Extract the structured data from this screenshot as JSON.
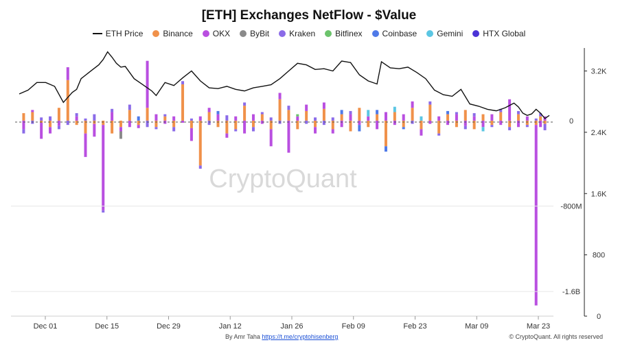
{
  "colors": {
    "eth_price": "#111111",
    "binance": "#f0914a",
    "okx": "#b94fe0",
    "bybit": "#8a8a8a",
    "kraken": "#8b6be8",
    "bitfinex": "#6cc36c",
    "coinbase": "#4f7ae8",
    "gemini": "#5bc6e3",
    "htx": "#4a33d6"
  },
  "watermark": "CryptoQuant",
  "footer": {
    "author": "By Amr Taha",
    "link": "https://t.me/cryptohisenberg",
    "copyright": "© CryptoQuant. All rights reserved"
  },
  "chart_data": {
    "type": "bar",
    "title": "[ETH] Exchanges NetFlow - $Value",
    "legend_position": "top-center",
    "legend": [
      "ETH Price",
      "Binance",
      "OKX",
      "ByBit",
      "Kraken",
      "Bitfinex",
      "Coinbase",
      "Gemini",
      "HTX Global"
    ],
    "x_tick_labels": [
      "Dec 01",
      "Dec 15",
      "Dec 29",
      "Jan 12",
      "Jan 26",
      "Feb 09",
      "Feb 23",
      "Mar 09",
      "Mar 23"
    ],
    "y_left_ticks": [
      {
        "value": 0,
        "label": "0"
      },
      {
        "value": -800,
        "label": "-800M"
      },
      {
        "value": -1600,
        "label": "-1.6B"
      }
    ],
    "y_left_range": [
      -1830,
      680
    ],
    "y_right_ticks": [
      {
        "value": 0,
        "label": "0"
      },
      {
        "value": 800,
        "label": "800"
      },
      {
        "value": 1600,
        "label": "1.6K"
      },
      {
        "value": 2400,
        "label": "2.4K"
      },
      {
        "value": 3200,
        "label": "3.2K"
      }
    ],
    "y_right_range": [
      0,
      3500
    ],
    "grid": false,
    "days": 120,
    "eth_price_series": [
      [
        0,
        2900
      ],
      [
        2,
        2950
      ],
      [
        4,
        3050
      ],
      [
        6,
        3050
      ],
      [
        8,
        3000
      ],
      [
        10,
        2790
      ],
      [
        12,
        2920
      ],
      [
        13,
        2960
      ],
      [
        14,
        3100
      ],
      [
        16,
        3190
      ],
      [
        18,
        3280
      ],
      [
        19,
        3350
      ],
      [
        20,
        3450
      ],
      [
        21,
        3380
      ],
      [
        22,
        3300
      ],
      [
        23,
        3250
      ],
      [
        24,
        3260
      ],
      [
        25,
        3180
      ],
      [
        26,
        3100
      ],
      [
        28,
        3020
      ],
      [
        30,
        2940
      ],
      [
        31,
        2880
      ],
      [
        33,
        3050
      ],
      [
        35,
        3010
      ],
      [
        37,
        3110
      ],
      [
        39,
        3200
      ],
      [
        41,
        3070
      ],
      [
        43,
        2980
      ],
      [
        45,
        2970
      ],
      [
        47,
        3000
      ],
      [
        49,
        2960
      ],
      [
        51,
        2940
      ],
      [
        53,
        2980
      ],
      [
        55,
        3000
      ],
      [
        57,
        3020
      ],
      [
        59,
        3100
      ],
      [
        61,
        3200
      ],
      [
        63,
        3300
      ],
      [
        65,
        3280
      ],
      [
        67,
        3220
      ],
      [
        69,
        3230
      ],
      [
        71,
        3200
      ],
      [
        73,
        3330
      ],
      [
        75,
        3310
      ],
      [
        77,
        3150
      ],
      [
        79,
        3070
      ],
      [
        81,
        3030
      ],
      [
        82,
        3320
      ],
      [
        84,
        3240
      ],
      [
        86,
        3230
      ],
      [
        88,
        3250
      ],
      [
        90,
        3180
      ],
      [
        92,
        3100
      ],
      [
        94,
        2950
      ],
      [
        96,
        2890
      ],
      [
        98,
        2870
      ],
      [
        100,
        2960
      ],
      [
        102,
        2770
      ],
      [
        104,
        2740
      ],
      [
        106,
        2700
      ],
      [
        108,
        2680
      ],
      [
        110,
        2720
      ],
      [
        112,
        2780
      ],
      [
        113,
        2730
      ],
      [
        114,
        2650
      ],
      [
        115,
        2620
      ],
      [
        116,
        2640
      ],
      [
        117,
        2700
      ],
      [
        118,
        2650
      ],
      [
        119,
        2580
      ],
      [
        120,
        2620
      ]
    ],
    "netflow_bars_musd": [
      {
        "day": 1,
        "binance": 70,
        "okx": -80,
        "kraken": -40
      },
      {
        "day": 3,
        "binance": 80,
        "okx": 20,
        "kraken": -30
      },
      {
        "day": 5,
        "binance": -20,
        "okx": -150,
        "kraken": 30
      },
      {
        "day": 7,
        "binance": -60,
        "okx": -60,
        "kraken": 40
      },
      {
        "day": 9,
        "binance": 120,
        "okx": -50,
        "kraken": -30
      },
      {
        "day": 11,
        "binance": 380,
        "okx": 120,
        "kraken": -40
      },
      {
        "day": 13,
        "binance": -40,
        "okx": 40,
        "kraken": 30
      },
      {
        "day": 15,
        "binance": -120,
        "okx": -220,
        "kraken": 20
      },
      {
        "day": 17,
        "binance": -30,
        "okx": -120,
        "kraken": 60
      },
      {
        "day": 19,
        "binance": -40,
        "okx": -800,
        "kraken": -20
      },
      {
        "day": 21,
        "binance": -120,
        "okx": 80,
        "kraken": 30
      },
      {
        "day": 23,
        "binance": -60,
        "okx": -40,
        "bybit": -70
      },
      {
        "day": 25,
        "binance": 100,
        "okx": -60,
        "kraken": 50
      },
      {
        "day": 27,
        "binance": -40,
        "okx": -30,
        "coinbase": 40
      },
      {
        "day": 29,
        "binance": 120,
        "okx": 440,
        "kraken": -60
      },
      {
        "day": 31,
        "binance": -60,
        "okx": 60,
        "kraken": -20
      },
      {
        "day": 33,
        "binance": 40,
        "okx": -30,
        "kraken": 20
      },
      {
        "day": 35,
        "binance": -60,
        "okx": 40,
        "kraken": -40
      },
      {
        "day": 37,
        "binance": 340,
        "okx": -20,
        "kraken": 30
      },
      {
        "day": 39,
        "binance": -70,
        "okx": -120,
        "kraken": 20
      },
      {
        "day": 41,
        "binance": -420,
        "okx": 40,
        "kraken": -30
      },
      {
        "day": 43,
        "binance": 80,
        "okx": 40,
        "kraken": -40
      },
      {
        "day": 45,
        "binance": -60,
        "okx": 60,
        "coinbase": 30
      },
      {
        "day": 47,
        "binance": -120,
        "okx": -40,
        "kraken": 50
      },
      {
        "day": 49,
        "binance": -80,
        "okx": 40,
        "kraken": -20
      },
      {
        "day": 51,
        "binance": 140,
        "okx": -120,
        "kraken": 30
      },
      {
        "day": 53,
        "binance": -60,
        "okx": 60,
        "kraken": -40
      },
      {
        "day": 55,
        "binance": 60,
        "okx": -30,
        "kraken": 20
      },
      {
        "day": 57,
        "binance": -80,
        "okx": -160,
        "kraken": 30
      },
      {
        "day": 59,
        "binance": 200,
        "okx": 60,
        "kraken": -30
      },
      {
        "day": 61,
        "binance": 100,
        "okx": -300,
        "kraken": 40
      },
      {
        "day": 63,
        "binance": -80,
        "okx": 40,
        "bitfinex": 20
      },
      {
        "day": 65,
        "binance": 90,
        "okx": 60,
        "kraken": -30
      },
      {
        "day": 67,
        "binance": -60,
        "okx": -60,
        "kraken": 30
      },
      {
        "day": 69,
        "binance": 110,
        "okx": 60,
        "kraken": -40
      },
      {
        "day": 71,
        "binance": -80,
        "okx": -40,
        "kraken": 30
      },
      {
        "day": 73,
        "binance": 60,
        "okx": -60,
        "coinbase": 40
      },
      {
        "day": 75,
        "binance": -100,
        "okx": 60,
        "kraken": 30
      },
      {
        "day": 77,
        "binance": 120,
        "okx": -40,
        "coinbase": -60
      },
      {
        "day": 79,
        "binance": -60,
        "okx": 40,
        "gemini": 60
      },
      {
        "day": 81,
        "binance": 60,
        "okx": -80,
        "coinbase": 40
      },
      {
        "day": 83,
        "binance": -240,
        "okx": 80,
        "coinbase": -50
      },
      {
        "day": 85,
        "binance": 80,
        "okx": -40,
        "gemini": 50
      },
      {
        "day": 87,
        "binance": -60,
        "okx": 60,
        "coinbase": -20
      },
      {
        "day": 89,
        "binance": 120,
        "okx": 60,
        "kraken": -30
      },
      {
        "day": 91,
        "binance": -80,
        "okx": -60,
        "gemini": 40
      },
      {
        "day": 93,
        "binance": 150,
        "okx": -30,
        "kraken": 30
      },
      {
        "day": 95,
        "binance": -120,
        "okx": 40,
        "kraken": -20
      },
      {
        "day": 97,
        "binance": 60,
        "okx": -40,
        "coinbase": 30
      },
      {
        "day": 99,
        "binance": -60,
        "okx": 60,
        "kraken": 20
      },
      {
        "day": 101,
        "binance": 100,
        "okx": -50,
        "kraken": -30
      },
      {
        "day": 103,
        "binance": -80,
        "okx": 40,
        "kraken": 30
      },
      {
        "day": 105,
        "binance": 60,
        "okx": -60,
        "gemini": -40
      },
      {
        "day": 107,
        "binance": -40,
        "okx": 60,
        "kraken": -20
      },
      {
        "day": 109,
        "binance": 80,
        "okx": -40,
        "kraken": 30
      },
      {
        "day": 111,
        "binance": -60,
        "okx": 200,
        "kraken": -30
      },
      {
        "day": 113,
        "binance": 60,
        "okx": -60,
        "kraken": 30
      },
      {
        "day": 115,
        "binance": -40,
        "okx": 40,
        "kraken": -20
      },
      {
        "day": 117,
        "binance": -40,
        "okx": -1690,
        "kraken": 20
      },
      {
        "day": 118,
        "binance": 40,
        "okx": -60,
        "kraken": 30
      },
      {
        "day": 119,
        "binance": -30,
        "okx": 40,
        "kraken": -60
      }
    ]
  }
}
